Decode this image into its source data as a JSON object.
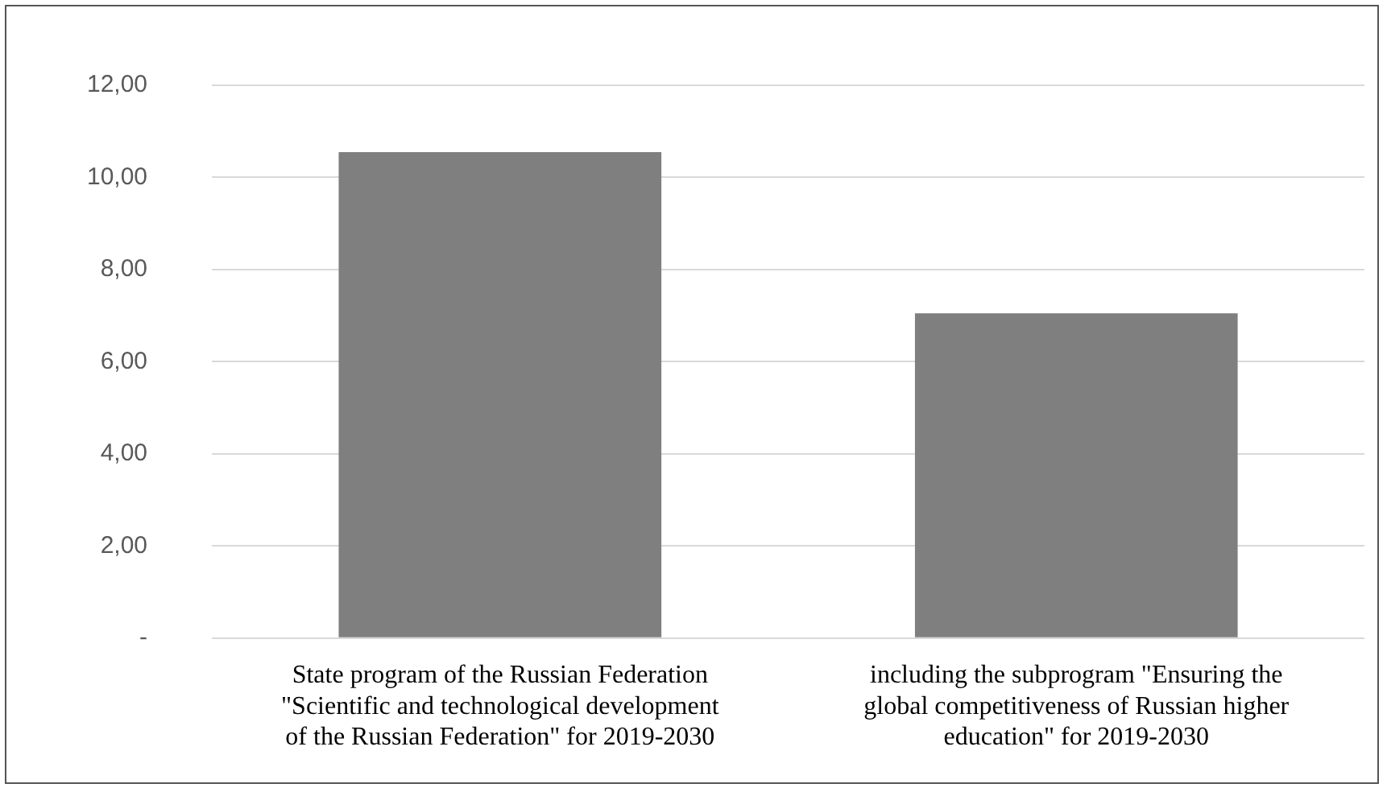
{
  "chart_data": {
    "type": "bar",
    "categories": [
      "State program of the Russian Federation \"Scientific and technological development of the Russian Federation\" for 2019-2030",
      "including the subprogram \"Ensuring the global competitiveness of Russian higher education\" for 2019-2030"
    ],
    "values": [
      10.55,
      7.05
    ],
    "color": "#7f7f7f",
    "ylim": [
      0,
      12
    ],
    "yticks": [
      {
        "value": 0,
        "label": "-"
      },
      {
        "value": 2,
        "label": "2,00"
      },
      {
        "value": 4,
        "label": "4,00"
      },
      {
        "value": 6,
        "label": "6,00"
      },
      {
        "value": 8,
        "label": "8,00"
      },
      {
        "value": 10,
        "label": "10,00"
      },
      {
        "value": 12,
        "label": "12,00"
      }
    ],
    "grid": "y",
    "legend": false
  }
}
